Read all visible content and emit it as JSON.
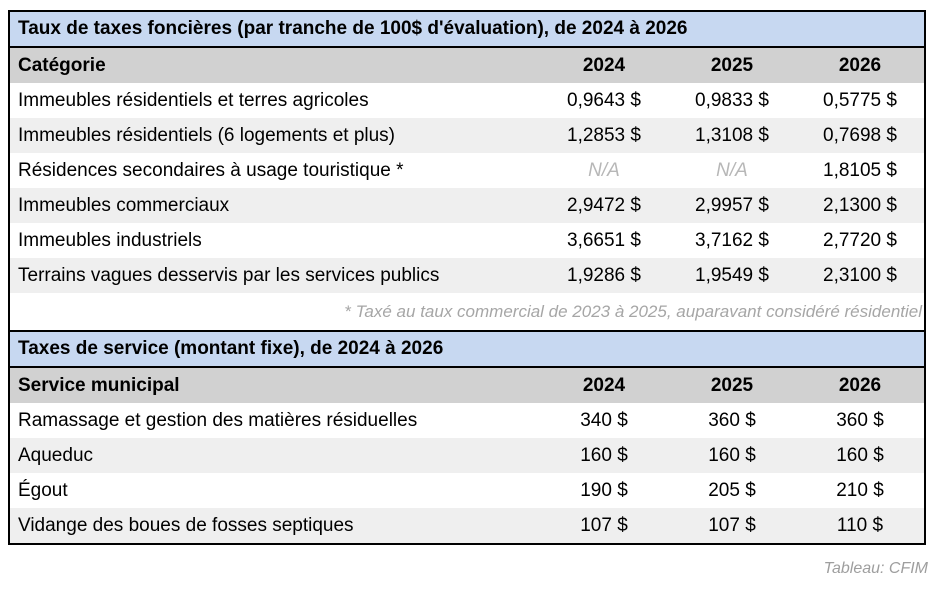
{
  "chart_data": [
    {
      "type": "table",
      "title": "Taux de taxes foncières (par tranche de 100$ d'évaluation), de 2024 à 2026",
      "columns": [
        "Catégorie",
        "2024",
        "2025",
        "2026"
      ],
      "rows": [
        [
          "Immeubles résidentiels et terres agricoles",
          "0,9643 $",
          "0,9833 $",
          "0,5775 $"
        ],
        [
          "Immeubles résidentiels (6 logements et plus)",
          "1,2853 $",
          "1,3108 $",
          "0,7698 $"
        ],
        [
          "Résidences secondaires à usage touristique *",
          "N/A",
          "N/A",
          "1,8105 $"
        ],
        [
          "Immeubles commerciaux",
          "2,9472 $",
          "2,9957 $",
          "2,1300 $"
        ],
        [
          "Immeubles industriels",
          "3,6651 $",
          "3,7162 $",
          "2,7720 $"
        ],
        [
          "Terrains vagues desservis par les services publics",
          "1,9286 $",
          "1,9549 $",
          "2,3100 $"
        ]
      ],
      "footnote": "* Taxé au taux commercial de 2023 à 2025, auparavant considéré résidentiel"
    },
    {
      "type": "table",
      "title": "Taxes de service (montant fixe), de 2024 à 2026",
      "columns": [
        "Service municipal",
        "2024",
        "2025",
        "2026"
      ],
      "rows": [
        [
          "Ramassage et gestion des matières résiduelles",
          "340 $",
          "360 $",
          "360 $"
        ],
        [
          "Aqueduc",
          "160 $",
          "160 $",
          "160 $"
        ],
        [
          "Égout",
          "190 $",
          "205 $",
          "210 $"
        ],
        [
          "Vidange des boues de fosses septiques",
          "107 $",
          "107 $",
          "110 $"
        ]
      ]
    }
  ],
  "credit": "Tableau: CFIM",
  "colors": {
    "title_bg": "#c7d8f1",
    "header_bg": "#d1d1d1",
    "alt_row_bg": "#efefef",
    "border": "#000000",
    "muted_text": "#a6a6a6",
    "na_text": "#b7b7b7"
  }
}
